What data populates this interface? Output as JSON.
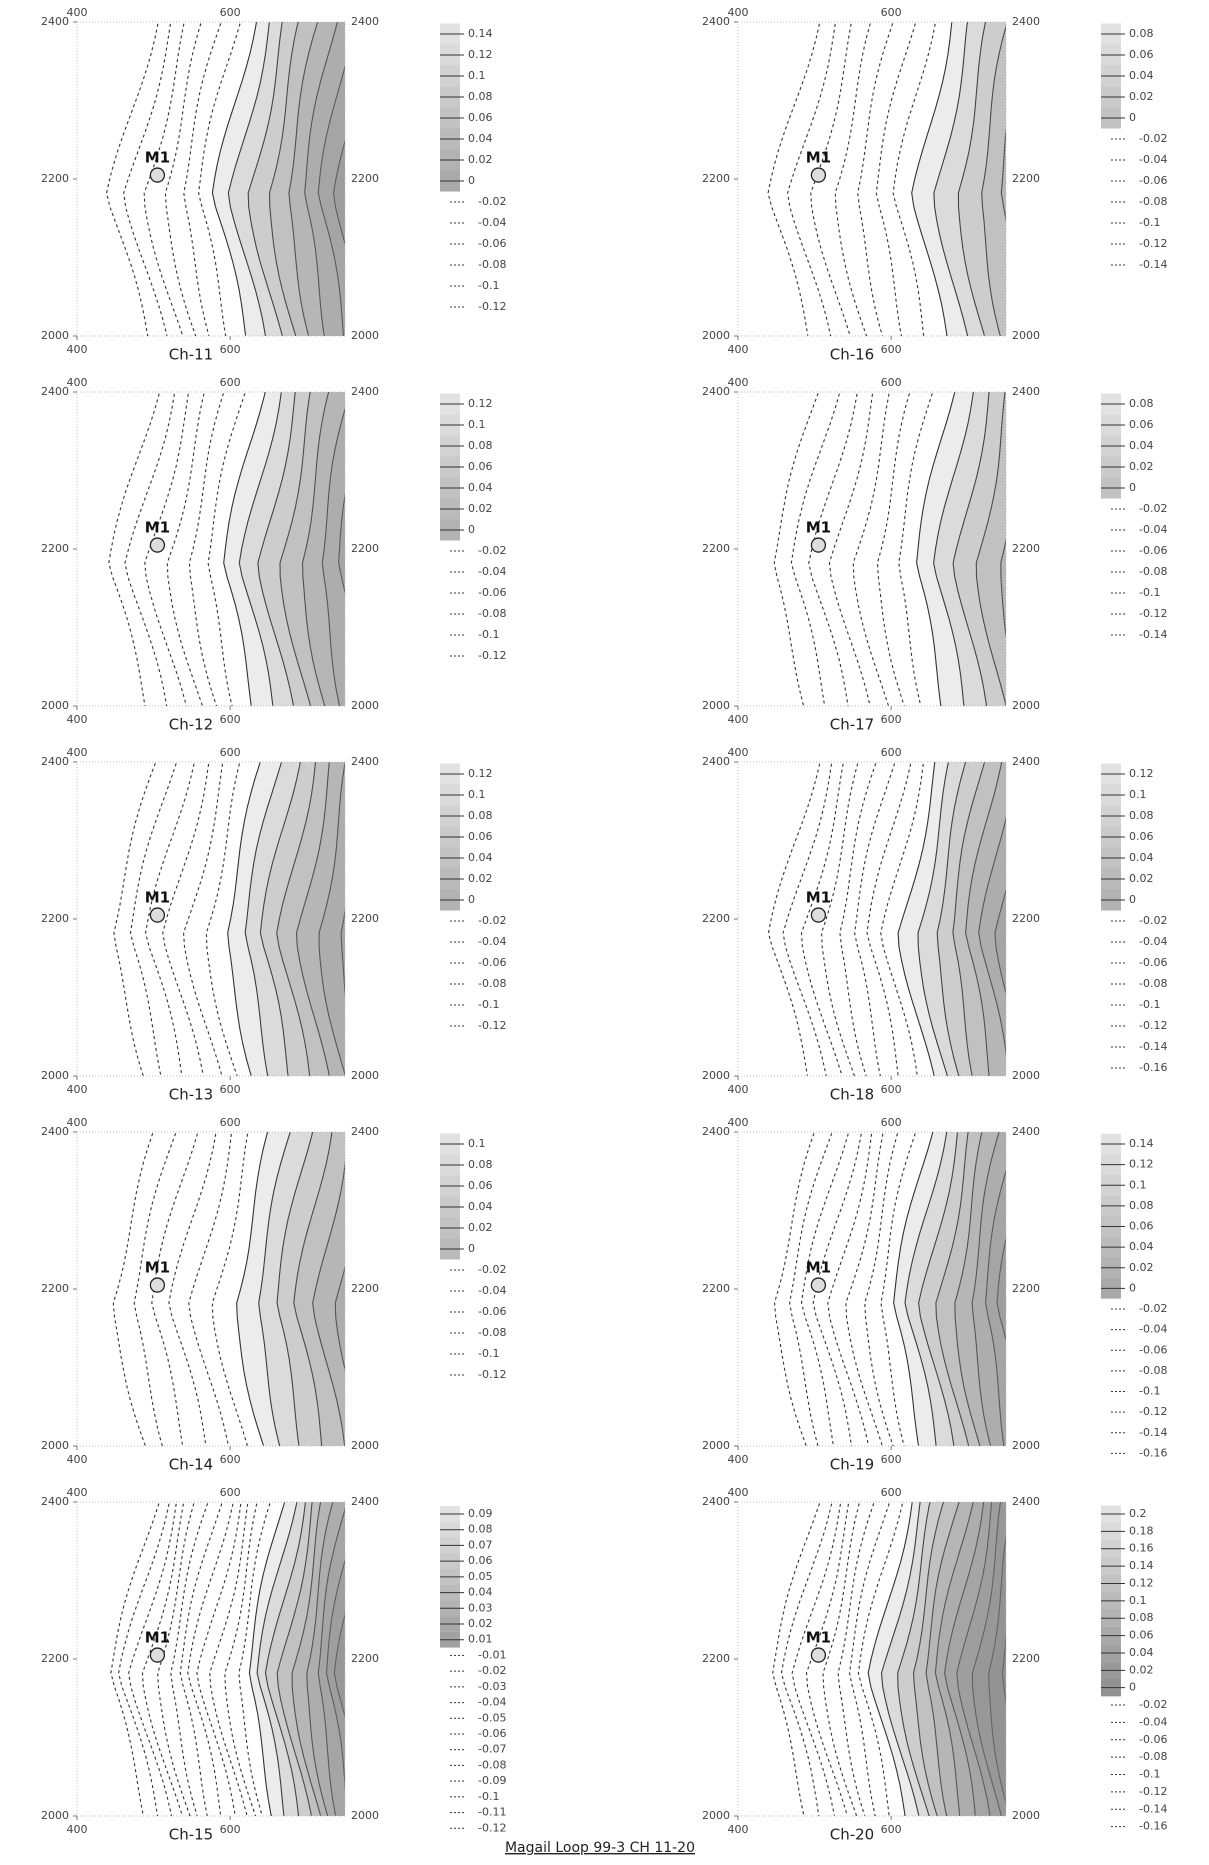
{
  "caption": "Magail  Loop 99-3  CH 11-20",
  "chart_data": [
    {
      "type": "contour",
      "title": "Ch-11",
      "xlim": [
        400,
        750
      ],
      "ylim": [
        2000,
        2400
      ],
      "xticks": [
        400,
        600
      ],
      "yticks": [
        2000,
        2200,
        2400
      ],
      "marker": {
        "label": "M1",
        "x": 505,
        "y": 2205
      },
      "levels": [
        0.14,
        0.12,
        0.1,
        0.08,
        0.06,
        0.04,
        0.02,
        0,
        -0.02,
        -0.04,
        -0.06,
        -0.08,
        -0.1,
        -0.12
      ]
    },
    {
      "type": "contour",
      "title": "Ch-12",
      "xlim": [
        400,
        750
      ],
      "ylim": [
        2000,
        2400
      ],
      "xticks": [
        400,
        600
      ],
      "yticks": [
        2000,
        2200,
        2400
      ],
      "marker": {
        "label": "M1",
        "x": 505,
        "y": 2205
      },
      "levels": [
        0.12,
        0.1,
        0.08,
        0.06,
        0.04,
        0.02,
        0,
        -0.02,
        -0.04,
        -0.06,
        -0.08,
        -0.1,
        -0.12
      ]
    },
    {
      "type": "contour",
      "title": "Ch-13",
      "xlim": [
        400,
        750
      ],
      "ylim": [
        2000,
        2400
      ],
      "xticks": [
        400,
        600
      ],
      "yticks": [
        2000,
        2200,
        2400
      ],
      "marker": {
        "label": "M1",
        "x": 505,
        "y": 2205
      },
      "levels": [
        0.12,
        0.1,
        0.08,
        0.06,
        0.04,
        0.02,
        0,
        -0.02,
        -0.04,
        -0.06,
        -0.08,
        -0.1,
        -0.12
      ]
    },
    {
      "type": "contour",
      "title": "Ch-14",
      "xlim": [
        400,
        750
      ],
      "ylim": [
        2000,
        2400
      ],
      "xticks": [
        400,
        600
      ],
      "yticks": [
        2000,
        2200,
        2400
      ],
      "marker": {
        "label": "M1",
        "x": 505,
        "y": 2205
      },
      "levels": [
        0.1,
        0.08,
        0.06,
        0.04,
        0.02,
        0,
        -0.02,
        -0.04,
        -0.06,
        -0.08,
        -0.1,
        -0.12
      ]
    },
    {
      "type": "contour",
      "title": "Ch-15",
      "xlim": [
        400,
        750
      ],
      "ylim": [
        2000,
        2400
      ],
      "xticks": [
        400,
        600
      ],
      "yticks": [
        2000,
        2200,
        2400
      ],
      "marker": {
        "label": "M1",
        "x": 505,
        "y": 2205
      },
      "levels": [
        0.09,
        0.08,
        0.07,
        0.06,
        0.05,
        0.04,
        0.03,
        0.02,
        0.01,
        -0.01,
        -0.02,
        -0.03,
        -0.04,
        -0.05,
        -0.06,
        -0.07,
        -0.08,
        -0.09,
        -0.1,
        -0.11,
        -0.12
      ]
    },
    {
      "type": "contour",
      "title": "Ch-16",
      "xlim": [
        400,
        750
      ],
      "ylim": [
        2000,
        2400
      ],
      "xticks": [
        400,
        600
      ],
      "yticks": [
        2000,
        2200,
        2400
      ],
      "marker": {
        "label": "M1",
        "x": 505,
        "y": 2205
      },
      "levels": [
        0.08,
        0.06,
        0.04,
        0.02,
        0,
        -0.02,
        -0.04,
        -0.06,
        -0.08,
        -0.1,
        -0.12,
        -0.14
      ]
    },
    {
      "type": "contour",
      "title": "Ch-17",
      "xlim": [
        400,
        750
      ],
      "ylim": [
        2000,
        2400
      ],
      "xticks": [
        400,
        600
      ],
      "yticks": [
        2000,
        2200,
        2400
      ],
      "marker": {
        "label": "M1",
        "x": 505,
        "y": 2205
      },
      "levels": [
        0.08,
        0.06,
        0.04,
        0.02,
        0,
        -0.02,
        -0.04,
        -0.06,
        -0.08,
        -0.1,
        -0.12,
        -0.14
      ]
    },
    {
      "type": "contour",
      "title": "Ch-18",
      "xlim": [
        400,
        750
      ],
      "ylim": [
        2000,
        2400
      ],
      "xticks": [
        400,
        600
      ],
      "yticks": [
        2000,
        2200,
        2400
      ],
      "marker": {
        "label": "M1",
        "x": 505,
        "y": 2205
      },
      "levels": [
        0.12,
        0.1,
        0.08,
        0.06,
        0.04,
        0.02,
        0,
        -0.02,
        -0.04,
        -0.06,
        -0.08,
        -0.1,
        -0.12,
        -0.14,
        -0.16
      ]
    },
    {
      "type": "contour",
      "title": "Ch-19",
      "xlim": [
        400,
        750
      ],
      "ylim": [
        2000,
        2400
      ],
      "xticks": [
        400,
        600
      ],
      "yticks": [
        2000,
        2200,
        2400
      ],
      "marker": {
        "label": "M1",
        "x": 505,
        "y": 2205
      },
      "levels": [
        0.14,
        0.12,
        0.1,
        0.08,
        0.06,
        0.04,
        0.02,
        0,
        -0.02,
        -0.04,
        -0.06,
        -0.08,
        -0.1,
        -0.12,
        -0.14,
        -0.16
      ]
    },
    {
      "type": "contour",
      "title": "Ch-20",
      "xlim": [
        400,
        750
      ],
      "ylim": [
        2000,
        2400
      ],
      "xticks": [
        400,
        600
      ],
      "yticks": [
        2000,
        2200,
        2400
      ],
      "marker": {
        "label": "M1",
        "x": 505,
        "y": 2205
      },
      "levels": [
        0.2,
        0.18,
        0.16,
        0.14,
        0.12,
        0.1,
        0.08,
        0.06,
        0.04,
        0.02,
        0,
        -0.02,
        -0.04,
        -0.06,
        -0.08,
        -0.1,
        -0.12,
        -0.14,
        -0.16
      ]
    }
  ]
}
